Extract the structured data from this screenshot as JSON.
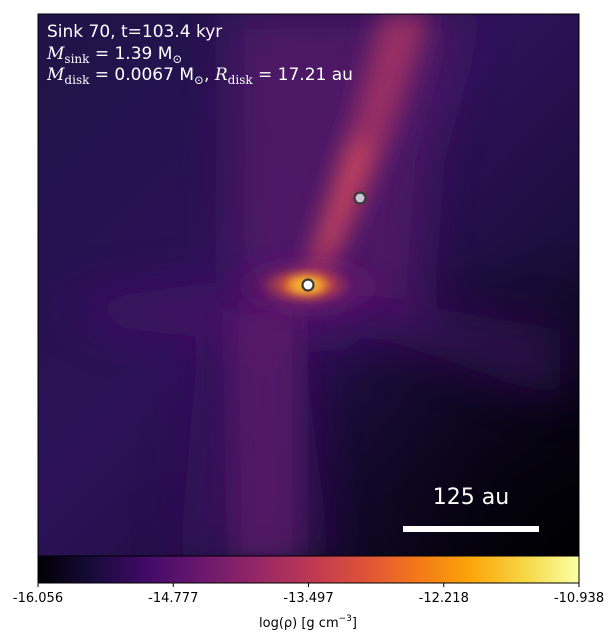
{
  "annotation": {
    "line1": "Sink 70, t=103.4 kyr",
    "line2_prefix": "M",
    "line2_sub": "sink",
    "line2_rest": " = 1.39 M",
    "line2_unit_sub": "⊙",
    "line3_prefix": "M",
    "line3_sub": "disk",
    "line3_mid": " = 0.0067 M",
    "line3_unit_sub": "⊙",
    "line3_sep": ", ",
    "line3_r": "R",
    "line3_r_sub": "disk",
    "line3_r_rest": " = 17.21 au"
  },
  "scale_bar": {
    "label": "125 au"
  },
  "colorbar": {
    "colormap": "inferno",
    "ticks": [
      "-16.056",
      "-14.777",
      "-13.497",
      "-12.218",
      "-10.938"
    ],
    "label_prefix": "log(ρ) [g cm",
    "label_exp": "−3",
    "label_suffix": "]"
  },
  "sinks": [
    {
      "name": "primary-sink",
      "fill": "#ffffff",
      "edge": "#3a3a3a"
    },
    {
      "name": "secondary-sink",
      "fill": "#cbc3d6",
      "edge": "#3a3a3a"
    }
  ],
  "colors": {
    "background_dark": "#1a0f3f",
    "filament": "#d8546a",
    "disk_core": "#fcb020"
  }
}
